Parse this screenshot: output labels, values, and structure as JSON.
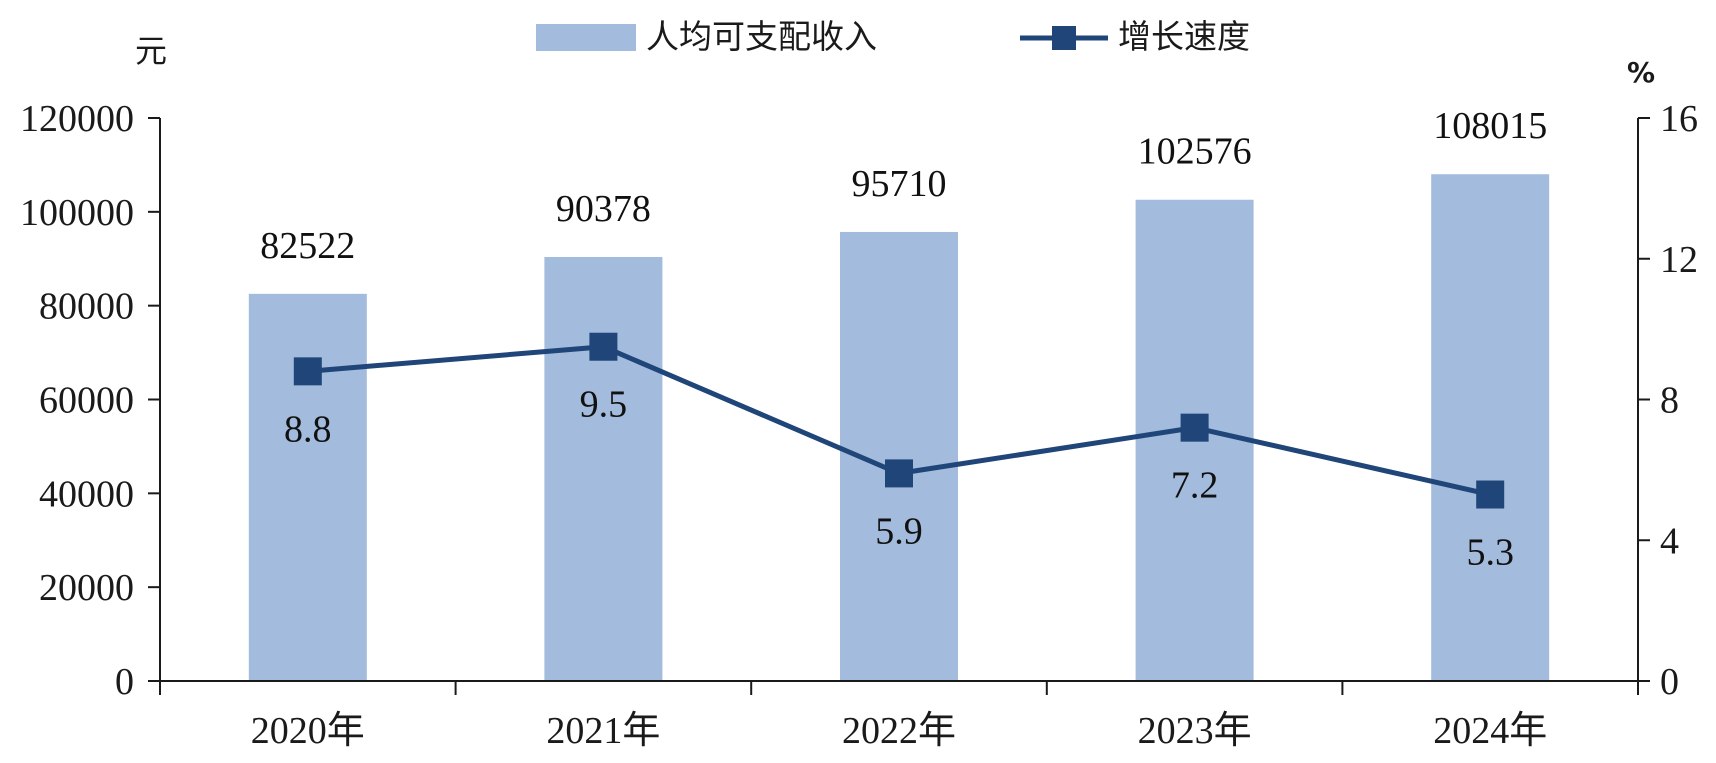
{
  "chart_data": {
    "type": "bar",
    "categories": [
      "2020年",
      "2021年",
      "2022年",
      "2023年",
      "2024年"
    ],
    "series": [
      {
        "name": "人均可支配收入",
        "type": "bar",
        "axis": "left",
        "values": [
          82522,
          90378,
          95710,
          102576,
          108015
        ],
        "labels": [
          "82522",
          "90378",
          "95710",
          "102576",
          "108015"
        ]
      },
      {
        "name": "增长速度",
        "type": "line",
        "axis": "right",
        "values": [
          8.8,
          9.5,
          5.9,
          7.2,
          5.3
        ],
        "labels": [
          "8.8",
          "9.5",
          "5.9",
          "7.2",
          "5.3"
        ]
      }
    ],
    "left_axis": {
      "unit": "元",
      "ylim": [
        0,
        120000
      ],
      "ticks": [
        "0",
        "20000",
        "40000",
        "60000",
        "80000",
        "100000",
        "120000"
      ]
    },
    "right_axis": {
      "unit": "%",
      "ylim": [
        0,
        16
      ],
      "ticks": [
        "0",
        "4",
        "8",
        "12",
        "16"
      ]
    },
    "grid": false,
    "legend": "top-center",
    "colors": {
      "bar": "#a3bbdc",
      "line": "#1f4579",
      "axis": "#1a1a1a"
    }
  }
}
